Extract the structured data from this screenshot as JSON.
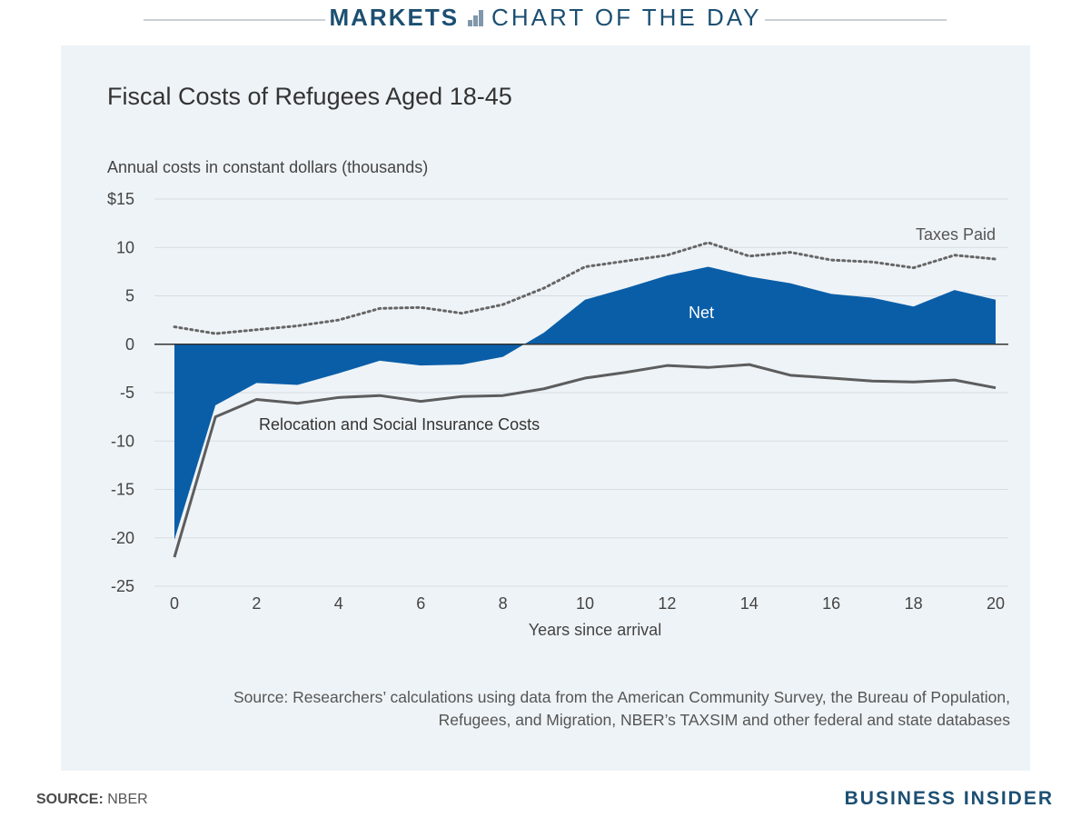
{
  "header": {
    "section": "MARKETS",
    "series_label": "CHART OF THE DAY",
    "icon": "bar-chart-icon"
  },
  "chart_data": {
    "type": "area",
    "title": "Fiscal Costs of Refugees Aged 18-45",
    "ylabel": "Annual costs in constant dollars (thousands)",
    "xlabel": "Years since arrival",
    "ylim": [
      -25,
      15
    ],
    "xlim": [
      0,
      20
    ],
    "y_ticks": [
      "$15",
      "10",
      "5",
      "0",
      "-5",
      "-10",
      "-15",
      "-20",
      "-25"
    ],
    "y_tick_values": [
      15,
      10,
      5,
      0,
      -5,
      -10,
      -15,
      -20,
      -25
    ],
    "x_ticks": [
      0,
      2,
      4,
      6,
      8,
      10,
      12,
      14,
      16,
      18,
      20
    ],
    "grid": "horizontal",
    "x": [
      0,
      1,
      2,
      3,
      4,
      5,
      6,
      7,
      8,
      9,
      10,
      11,
      12,
      13,
      14,
      15,
      16,
      17,
      18,
      19,
      20
    ],
    "series": [
      {
        "name": "Taxes Paid",
        "style": "dotted-line",
        "color": "#666666",
        "values": [
          1.8,
          1.1,
          1.5,
          1.9,
          2.5,
          3.7,
          3.8,
          3.2,
          4.1,
          5.8,
          8.0,
          8.6,
          9.2,
          10.5,
          9.1,
          9.5,
          8.7,
          8.5,
          7.9,
          9.2,
          8.8
        ]
      },
      {
        "name": "Net",
        "style": "filled-area",
        "color": "#0a5ea8",
        "values": [
          -20.2,
          -6.3,
          -4.0,
          -4.2,
          -3.0,
          -1.7,
          -2.2,
          -2.1,
          -1.3,
          1.2,
          4.6,
          5.8,
          7.1,
          8.0,
          7.0,
          6.3,
          5.2,
          4.8,
          3.9,
          5.6,
          4.6
        ]
      },
      {
        "name": "Relocation and Social Insurance Costs",
        "style": "solid-line",
        "color": "#5d5d5d",
        "values": [
          -22.0,
          -7.5,
          -5.7,
          -6.1,
          -5.5,
          -5.3,
          -5.9,
          -5.4,
          -5.3,
          -4.6,
          -3.5,
          -2.9,
          -2.2,
          -2.4,
          -2.1,
          -3.2,
          -3.5,
          -3.8,
          -3.9,
          -3.7,
          -4.5
        ]
      }
    ],
    "annotations": {
      "taxes": "Taxes Paid",
      "net": "Net",
      "relocation": "Relocation and Social Insurance Costs"
    },
    "source_note_line1": "Source: Researchers’ calculations using data from the American Community Survey, the Bureau of Population,",
    "source_note_line2": "Refugees, and Migration, NBER’s TAXSIM and other federal and state databases"
  },
  "footer": {
    "source_label": "SOURCE:",
    "source_value": "NBER",
    "brand": "BUSINESS INSIDER"
  }
}
